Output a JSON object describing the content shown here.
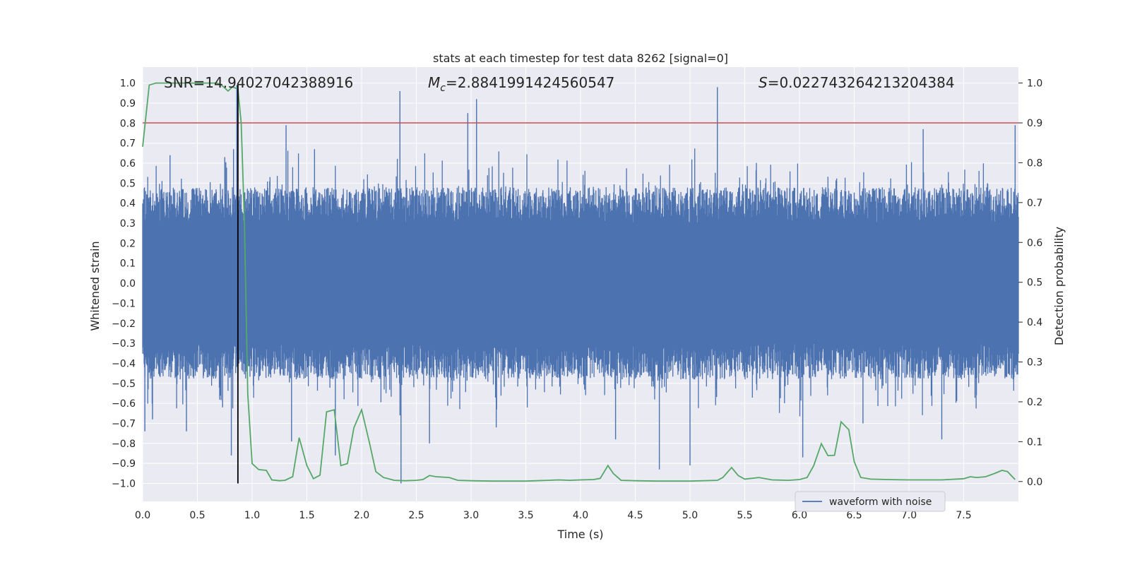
{
  "chart_data": {
    "type": "line",
    "title": "stats at each timestep for test data 8262 [signal=0]",
    "xlabel": "Time (s)",
    "ylabel_left": "Whitened strain",
    "ylabel_right": "Detection probability",
    "xlim": [
      0.0,
      8.0
    ],
    "ylim_left": [
      -1.09,
      1.08
    ],
    "ylim_right": [
      -0.05,
      1.04
    ],
    "x_ticks": [
      "0.0",
      "0.5",
      "1.0",
      "1.5",
      "2.0",
      "2.5",
      "3.0",
      "3.5",
      "4.0",
      "4.5",
      "5.0",
      "5.5",
      "6.0",
      "6.5",
      "7.0",
      "7.5"
    ],
    "x_tick_values": [
      0,
      0.5,
      1,
      1.5,
      2,
      2.5,
      3,
      3.5,
      4,
      4.5,
      5,
      5.5,
      6,
      6.5,
      7,
      7.5
    ],
    "y_left_ticks": [
      "1.0",
      "0.9",
      "0.8",
      "0.7",
      "0.6",
      "0.5",
      "0.4",
      "0.3",
      "0.2",
      "0.1",
      "0.0",
      "−0.1",
      "−0.2",
      "−0.3",
      "−0.4",
      "−0.5",
      "−0.6",
      "−0.7",
      "−0.8",
      "−0.9",
      "−1.0"
    ],
    "y_left_tick_values": [
      1.0,
      0.9,
      0.8,
      0.7,
      0.6,
      0.5,
      0.4,
      0.3,
      0.2,
      0.1,
      0.0,
      -0.1,
      -0.2,
      -0.3,
      -0.4,
      -0.5,
      -0.6,
      -0.7,
      -0.8,
      -0.9,
      -1.0
    ],
    "y_right_ticks": [
      "1.0",
      "0.9",
      "0.8",
      "0.7",
      "0.6",
      "0.5",
      "0.4",
      "0.3",
      "0.2",
      "0.1",
      "0.0"
    ],
    "y_right_tick_values": [
      1.0,
      0.9,
      0.8,
      0.7,
      0.6,
      0.5,
      0.4,
      0.3,
      0.2,
      0.1,
      0.0
    ],
    "annotations": {
      "snr": "SNR=14.94027042388916",
      "mc_symbol": "M",
      "mc_sub": "c",
      "mc_value": "=2.8841991424560547",
      "s_symbol": "S",
      "s_value": "=0.022743264213204384"
    },
    "threshold_prob": 0.9,
    "vertical_marker_x": 0.87,
    "legend": {
      "label": "waveform with noise",
      "position": "lower-right"
    },
    "colors": {
      "waveform": "#4c72b0",
      "probability": "#55a868",
      "threshold": "#c44e52",
      "marker": "#000000",
      "background": "#eaeaf2",
      "grid": "#ffffff"
    },
    "series": [
      {
        "name": "waveform with noise",
        "axis": "left",
        "envelope": "dense noise ~ ±0.45 with spikes",
        "spikes": [
          {
            "x": 0.02,
            "y": -0.74
          },
          {
            "x": 0.09,
            "y": -0.68
          },
          {
            "x": 0.25,
            "y": 0.64
          },
          {
            "x": 0.4,
            "y": -0.74
          },
          {
            "x": 0.73,
            "y": -0.62
          },
          {
            "x": 0.75,
            "y": 0.63
          },
          {
            "x": 0.81,
            "y": -0.86
          },
          {
            "x": 0.83,
            "y": 0.67
          },
          {
            "x": 0.86,
            "y": 0.99
          },
          {
            "x": 1.31,
            "y": 0.79
          },
          {
            "x": 1.36,
            "y": -0.79
          },
          {
            "x": 1.57,
            "y": 0.67
          },
          {
            "x": 1.76,
            "y": -0.86
          },
          {
            "x": 2.35,
            "y": 0.96
          },
          {
            "x": 2.36,
            "y": -1.0
          },
          {
            "x": 2.62,
            "y": -0.8
          },
          {
            "x": 2.97,
            "y": 0.85
          },
          {
            "x": 3.05,
            "y": 0.92
          },
          {
            "x": 3.23,
            "y": -0.72
          },
          {
            "x": 3.78,
            "y": -0.12
          },
          {
            "x": 4.32,
            "y": -0.78
          },
          {
            "x": 4.72,
            "y": -0.93
          },
          {
            "x": 5.0,
            "y": -0.91
          },
          {
            "x": 5.25,
            "y": 0.98
          },
          {
            "x": 6.03,
            "y": -0.87
          },
          {
            "x": 6.58,
            "y": -0.7
          },
          {
            "x": 7.13,
            "y": 0.77
          },
          {
            "x": 7.3,
            "y": -0.78
          },
          {
            "x": 7.97,
            "y": 0.79
          }
        ]
      },
      {
        "name": "",
        "axis": "right",
        "points": [
          [
            0.0,
            0.84
          ],
          [
            0.06,
            0.995
          ],
          [
            0.12,
            1.0
          ],
          [
            0.2,
            1.0
          ],
          [
            0.3,
            1.0
          ],
          [
            0.4,
            1.0
          ],
          [
            0.5,
            1.0
          ],
          [
            0.6,
            1.0
          ],
          [
            0.68,
            1.0
          ],
          [
            0.72,
            0.995
          ],
          [
            0.78,
            0.98
          ],
          [
            0.82,
            0.99
          ],
          [
            0.87,
            0.985
          ],
          [
            0.9,
            0.9
          ],
          [
            0.93,
            0.65
          ],
          [
            0.96,
            0.22
          ],
          [
            1.0,
            0.045
          ],
          [
            1.06,
            0.03
          ],
          [
            1.13,
            0.028
          ],
          [
            1.18,
            0.004
          ],
          [
            1.25,
            0.002
          ],
          [
            1.3,
            0.003
          ],
          [
            1.37,
            0.012
          ],
          [
            1.43,
            0.11
          ],
          [
            1.5,
            0.04
          ],
          [
            1.56,
            0.007
          ],
          [
            1.62,
            0.016
          ],
          [
            1.68,
            0.175
          ],
          [
            1.75,
            0.18
          ],
          [
            1.81,
            0.04
          ],
          [
            1.87,
            0.045
          ],
          [
            1.93,
            0.135
          ],
          [
            2.0,
            0.18
          ],
          [
            2.07,
            0.1
          ],
          [
            2.13,
            0.025
          ],
          [
            2.2,
            0.01
          ],
          [
            2.3,
            0.003
          ],
          [
            2.4,
            0.002
          ],
          [
            2.5,
            0.003
          ],
          [
            2.56,
            0.005
          ],
          [
            2.62,
            0.015
          ],
          [
            2.68,
            0.012
          ],
          [
            2.8,
            0.01
          ],
          [
            2.88,
            0.003
          ],
          [
            3.0,
            0.002
          ],
          [
            3.2,
            0.001
          ],
          [
            3.5,
            0.001
          ],
          [
            3.7,
            0.003
          ],
          [
            3.8,
            0.004
          ],
          [
            3.9,
            0.003
          ],
          [
            4.0,
            0.004
          ],
          [
            4.12,
            0.005
          ],
          [
            4.18,
            0.008
          ],
          [
            4.25,
            0.04
          ],
          [
            4.3,
            0.02
          ],
          [
            4.37,
            0.003
          ],
          [
            4.5,
            0.002
          ],
          [
            4.7,
            0.001
          ],
          [
            5.0,
            0.001
          ],
          [
            5.25,
            0.003
          ],
          [
            5.3,
            0.01
          ],
          [
            5.38,
            0.035
          ],
          [
            5.44,
            0.015
          ],
          [
            5.5,
            0.006
          ],
          [
            5.63,
            0.01
          ],
          [
            5.75,
            0.004
          ],
          [
            5.9,
            0.003
          ],
          [
            6.0,
            0.005
          ],
          [
            6.07,
            0.01
          ],
          [
            6.13,
            0.04
          ],
          [
            6.2,
            0.095
          ],
          [
            6.26,
            0.065
          ],
          [
            6.32,
            0.066
          ],
          [
            6.38,
            0.15
          ],
          [
            6.45,
            0.13
          ],
          [
            6.5,
            0.05
          ],
          [
            6.56,
            0.01
          ],
          [
            6.65,
            0.006
          ],
          [
            6.8,
            0.005
          ],
          [
            7.0,
            0.004
          ],
          [
            7.3,
            0.004
          ],
          [
            7.5,
            0.007
          ],
          [
            7.56,
            0.012
          ],
          [
            7.62,
            0.01
          ],
          [
            7.7,
            0.012
          ],
          [
            7.78,
            0.02
          ],
          [
            7.85,
            0.028
          ],
          [
            7.9,
            0.025
          ],
          [
            7.97,
            0.005
          ]
        ]
      }
    ]
  }
}
